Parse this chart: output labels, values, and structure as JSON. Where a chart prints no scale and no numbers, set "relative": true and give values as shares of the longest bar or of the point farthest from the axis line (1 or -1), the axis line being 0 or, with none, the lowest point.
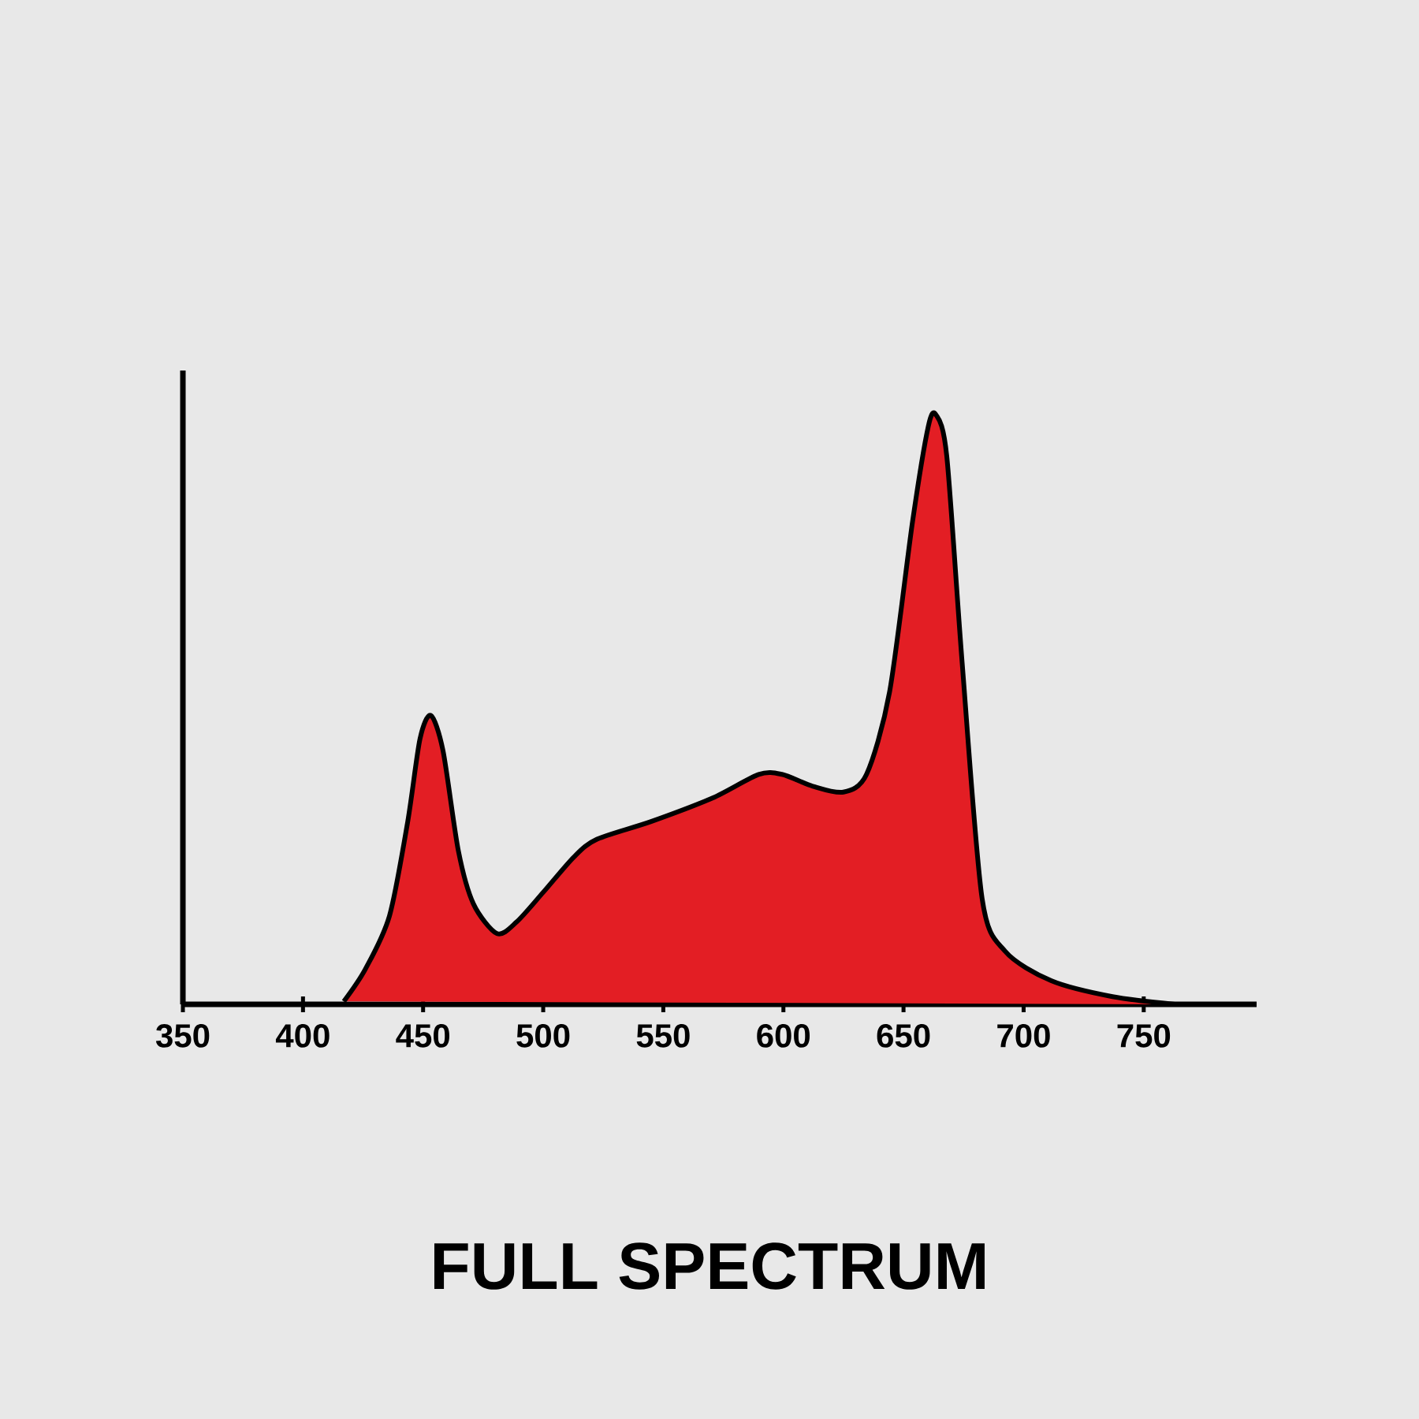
{
  "chart_data": {
    "type": "area",
    "title": "FULL SPECTRUM",
    "relative": true,
    "x": [
      417,
      426,
      436,
      443.6,
      448.7,
      453.2,
      458.3,
      464.7,
      471,
      480.8,
      489,
      500,
      512.8,
      522.4,
      544.9,
      570.5,
      589.7,
      599.4,
      612.2,
      625,
      634.6,
      644.2,
      653.8,
      660.3,
      663.5,
      668,
      674.4,
      682.7,
      692.3,
      711.5,
      737,
      763
    ],
    "values": [
      0.005,
      0.06,
      0.15,
      0.31,
      0.45,
      0.49,
      0.43,
      0.26,
      0.17,
      0.12,
      0.14,
      0.19,
      0.25,
      0.28,
      0.31,
      0.35,
      0.39,
      0.39,
      0.37,
      0.36,
      0.39,
      0.53,
      0.82,
      0.98,
      1.0,
      0.93,
      0.58,
      0.18,
      0.09,
      0.04,
      0.013,
      0
    ],
    "color": "#e31e24",
    "xlim": [
      350,
      797
    ],
    "xticks": [
      350,
      400,
      450,
      500,
      550,
      600,
      650,
      700,
      750
    ]
  }
}
